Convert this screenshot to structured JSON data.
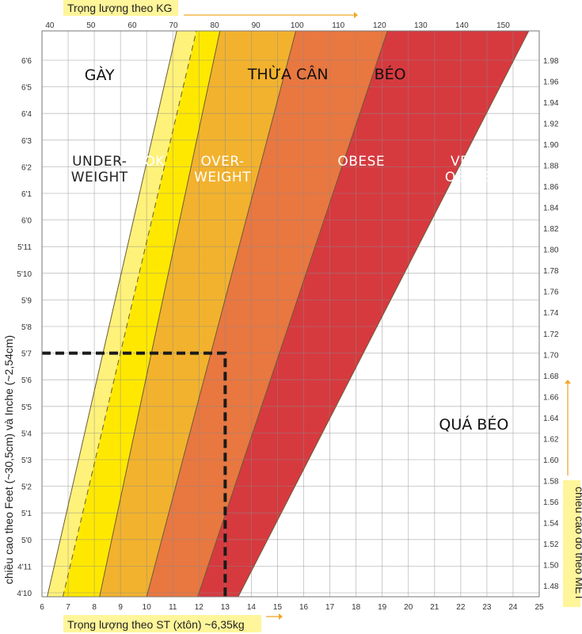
{
  "chart_data": {
    "type": "area",
    "axes": {
      "top": {
        "title": "Trọng lượng theo KG",
        "unit": "kg",
        "min": 40,
        "max": 160,
        "ticks": [
          40,
          50,
          60,
          70,
          80,
          90,
          100,
          110,
          120,
          130,
          140,
          150
        ]
      },
      "bottom": {
        "title": "Trọng lượng theo ST (xtôn) ~6,35kg",
        "unit": "st",
        "min": 6,
        "max": 25,
        "ticks": [
          6,
          7,
          8,
          9,
          10,
          11,
          12,
          13,
          14,
          15,
          16,
          17,
          18,
          19,
          20,
          21,
          22,
          23,
          24,
          25
        ]
      },
      "left": {
        "title": "chiều cao theo Feet (~30,5cm) và Inche (~2,54cm)",
        "unit": "in",
        "min": 58,
        "max": 79,
        "ticks": [
          "4'10",
          "4'11",
          "5'0",
          "5'1",
          "5'2",
          "5'3",
          "5'4",
          "5'5",
          "5'6",
          "5'7",
          "5'8",
          "5'9",
          "5'10",
          "5'11",
          "6'0",
          "6'1",
          "6'2",
          "6'3",
          "6'4",
          "6'5",
          "6'6"
        ]
      },
      "right": {
        "title": "chiều cao đo theo MÉT",
        "unit": "m",
        "min": 1.47,
        "max": 2.0,
        "ticks": [
          "1.48",
          "1.50",
          "1.52",
          "1.54",
          "1.56",
          "1.58",
          "1.60",
          "1.62",
          "1.64",
          "1.66",
          "1.68",
          "1.70",
          "1.72",
          "1.74",
          "1.76",
          "1.78",
          "1.80",
          "1.82",
          "1.84",
          "1.86",
          "1.88",
          "1.90",
          "1.92",
          "1.94",
          "1.96",
          "1.98"
        ]
      }
    },
    "zones": [
      {
        "label": "UNDER-\nWEIGHT",
        "label_vi": "GÀY",
        "color": "#ffffff"
      },
      {
        "label": "OK",
        "label_vi": "",
        "color": "#fff27a"
      },
      {
        "label": "",
        "label_vi": "",
        "color": "#ffe800"
      },
      {
        "label": "OVER-\nWEIGHT",
        "label_vi": "THỪA CÂN",
        "color": "#f2b22e"
      },
      {
        "label": "OBESE",
        "label_vi": "BÉO",
        "color": "#e97740"
      },
      {
        "label": "VERY\nOBESE",
        "label_vi": "QUÁ BÉO",
        "color": "#d63a3f"
      }
    ],
    "boundaries_st": [
      {
        "at_bottom": 6.2,
        "at_top": 11.15,
        "style": "solid"
      },
      {
        "at_bottom": 6.8,
        "at_top": 11.9,
        "style": "dashed"
      },
      {
        "at_bottom": 8.2,
        "at_top": 12.8,
        "style": "solid"
      },
      {
        "at_bottom": 10.0,
        "at_top": 15.7,
        "style": "solid"
      },
      {
        "at_bottom": 11.95,
        "at_top": 19.2,
        "style": "solid"
      },
      {
        "at_bottom": 13.5,
        "at_top": 24.6,
        "style": "solid"
      }
    ],
    "marker": {
      "height": "5'7",
      "weight_st": 13
    },
    "grid": true
  }
}
